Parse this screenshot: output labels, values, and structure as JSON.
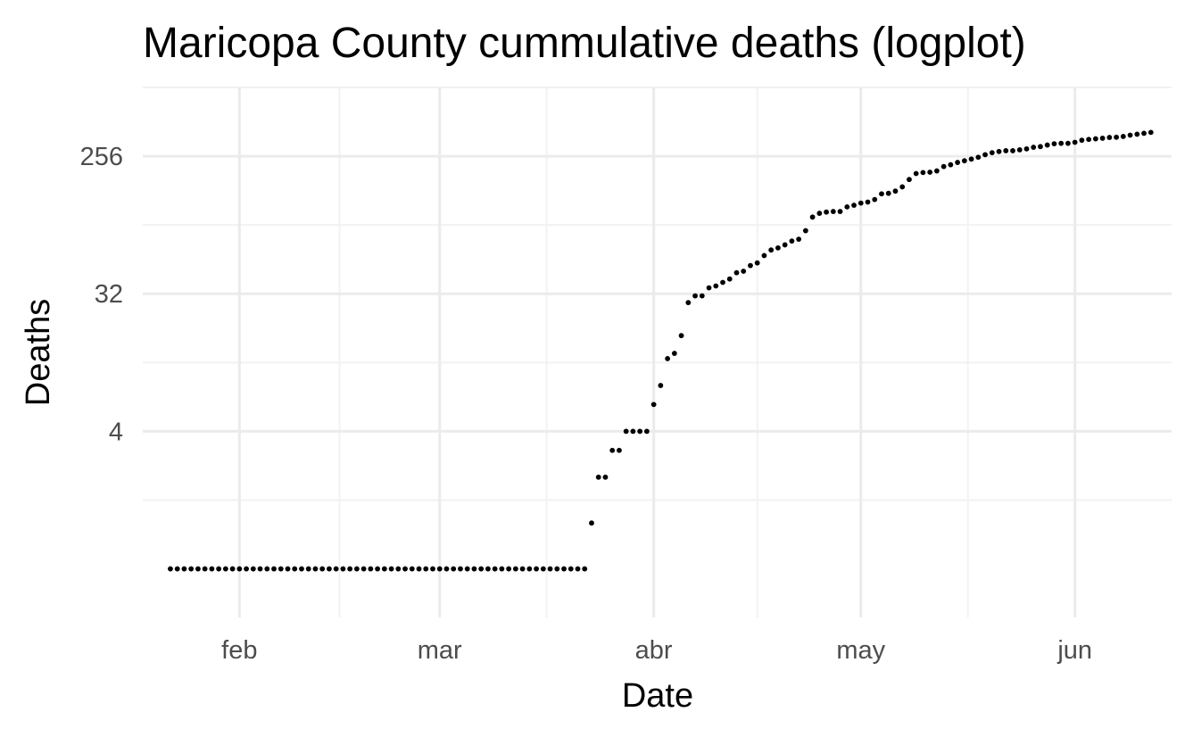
{
  "chart_data": {
    "type": "scatter",
    "title": "Maricopa County cummulative deaths (logplot)",
    "xlabel": "Date",
    "ylabel": "Deaths",
    "y_scale": "log2",
    "x_ticks": [
      {
        "label": "feb",
        "date": "2020-02-01"
      },
      {
        "label": "mar",
        "date": "2020-03-01"
      },
      {
        "label": "abr",
        "date": "2020-04-01"
      },
      {
        "label": "may",
        "date": "2020-05-01"
      },
      {
        "label": "jun",
        "date": "2020-06-01"
      }
    ],
    "y_ticks": [
      4,
      32,
      256
    ],
    "y_tick_labels": [
      "4",
      "32",
      "256"
    ],
    "xlim": [
      "2020-01-18",
      "2020-06-15"
    ],
    "ylim": [
      0.24,
      724
    ],
    "grid": true,
    "legend": "none",
    "point_color": "#000000",
    "series": [
      {
        "x": [
          "2020-01-22",
          "2020-01-23",
          "2020-01-24",
          "2020-01-25",
          "2020-01-26",
          "2020-01-27",
          "2020-01-28",
          "2020-01-29",
          "2020-01-30",
          "2020-01-31",
          "2020-02-01",
          "2020-02-02",
          "2020-02-03",
          "2020-02-04",
          "2020-02-05",
          "2020-02-06",
          "2020-02-07",
          "2020-02-08",
          "2020-02-09",
          "2020-02-10",
          "2020-02-11",
          "2020-02-12",
          "2020-02-13",
          "2020-02-14",
          "2020-02-15",
          "2020-02-16",
          "2020-02-17",
          "2020-02-18",
          "2020-02-19",
          "2020-02-20",
          "2020-02-21",
          "2020-02-22",
          "2020-02-23",
          "2020-02-24",
          "2020-02-25",
          "2020-02-26",
          "2020-02-27",
          "2020-02-28",
          "2020-02-29",
          "2020-03-01",
          "2020-03-02",
          "2020-03-03",
          "2020-03-04",
          "2020-03-05",
          "2020-03-06",
          "2020-03-07",
          "2020-03-08",
          "2020-03-09",
          "2020-03-10",
          "2020-03-11",
          "2020-03-12",
          "2020-03-13",
          "2020-03-14",
          "2020-03-15",
          "2020-03-16",
          "2020-03-17",
          "2020-03-18",
          "2020-03-19",
          "2020-03-20",
          "2020-03-21",
          "2020-03-22",
          "2020-03-23",
          "2020-03-24",
          "2020-03-25",
          "2020-03-26",
          "2020-03-27",
          "2020-03-28",
          "2020-03-29",
          "2020-03-30",
          "2020-03-31",
          "2020-04-01",
          "2020-04-02",
          "2020-04-03",
          "2020-04-04",
          "2020-04-05",
          "2020-04-06",
          "2020-04-07",
          "2020-04-08",
          "2020-04-09",
          "2020-04-10",
          "2020-04-11",
          "2020-04-12",
          "2020-04-13",
          "2020-04-14",
          "2020-04-15",
          "2020-04-16",
          "2020-04-17",
          "2020-04-18",
          "2020-04-19",
          "2020-04-20",
          "2020-04-21",
          "2020-04-22",
          "2020-04-23",
          "2020-04-24",
          "2020-04-25",
          "2020-04-26",
          "2020-04-27",
          "2020-04-28",
          "2020-04-29",
          "2020-04-30",
          "2020-05-01",
          "2020-05-02",
          "2020-05-03",
          "2020-05-04",
          "2020-05-05",
          "2020-05-06",
          "2020-05-07",
          "2020-05-08",
          "2020-05-09",
          "2020-05-10",
          "2020-05-11",
          "2020-05-12",
          "2020-05-13",
          "2020-05-14",
          "2020-05-15",
          "2020-05-16",
          "2020-05-17",
          "2020-05-18",
          "2020-05-19",
          "2020-05-20",
          "2020-05-21",
          "2020-05-22",
          "2020-05-23",
          "2020-05-24",
          "2020-05-25",
          "2020-05-26",
          "2020-05-27",
          "2020-05-28",
          "2020-05-29",
          "2020-05-30",
          "2020-05-31",
          "2020-06-01",
          "2020-06-02",
          "2020-06-03",
          "2020-06-04",
          "2020-06-05",
          "2020-06-06",
          "2020-06-07",
          "2020-06-08",
          "2020-06-09",
          "2020-06-10",
          "2020-06-11",
          "2020-06-12"
        ],
        "y": [
          0.5,
          0.5,
          0.5,
          0.5,
          0.5,
          0.5,
          0.5,
          0.5,
          0.5,
          0.5,
          0.5,
          0.5,
          0.5,
          0.5,
          0.5,
          0.5,
          0.5,
          0.5,
          0.5,
          0.5,
          0.5,
          0.5,
          0.5,
          0.5,
          0.5,
          0.5,
          0.5,
          0.5,
          0.5,
          0.5,
          0.5,
          0.5,
          0.5,
          0.5,
          0.5,
          0.5,
          0.5,
          0.5,
          0.5,
          0.5,
          0.5,
          0.5,
          0.5,
          0.5,
          0.5,
          0.5,
          0.5,
          0.5,
          0.5,
          0.5,
          0.5,
          0.5,
          0.5,
          0.5,
          0.5,
          0.5,
          0.5,
          0.5,
          0.5,
          0.5,
          0.5,
          1,
          2,
          2,
          3,
          3,
          4,
          4,
          4,
          4,
          6,
          8,
          12,
          13,
          17,
          28,
          31,
          31,
          35,
          36,
          38,
          40,
          44,
          45,
          49,
          51,
          57,
          62,
          64,
          67,
          71,
          73,
          83,
          102,
          108,
          110,
          111,
          111,
          119,
          122,
          126,
          128,
          133,
          145,
          146,
          151,
          161,
          180,
          197,
          200,
          201,
          205,
          219,
          225,
          233,
          239,
          245,
          252,
          262,
          270,
          275,
          278,
          278,
          282,
          286,
          293,
          296,
          303,
          309,
          311,
          311,
          316,
          326,
          330,
          333,
          336,
          340,
          341,
          345,
          352,
          357,
          362,
          367
        ]
      }
    ]
  }
}
